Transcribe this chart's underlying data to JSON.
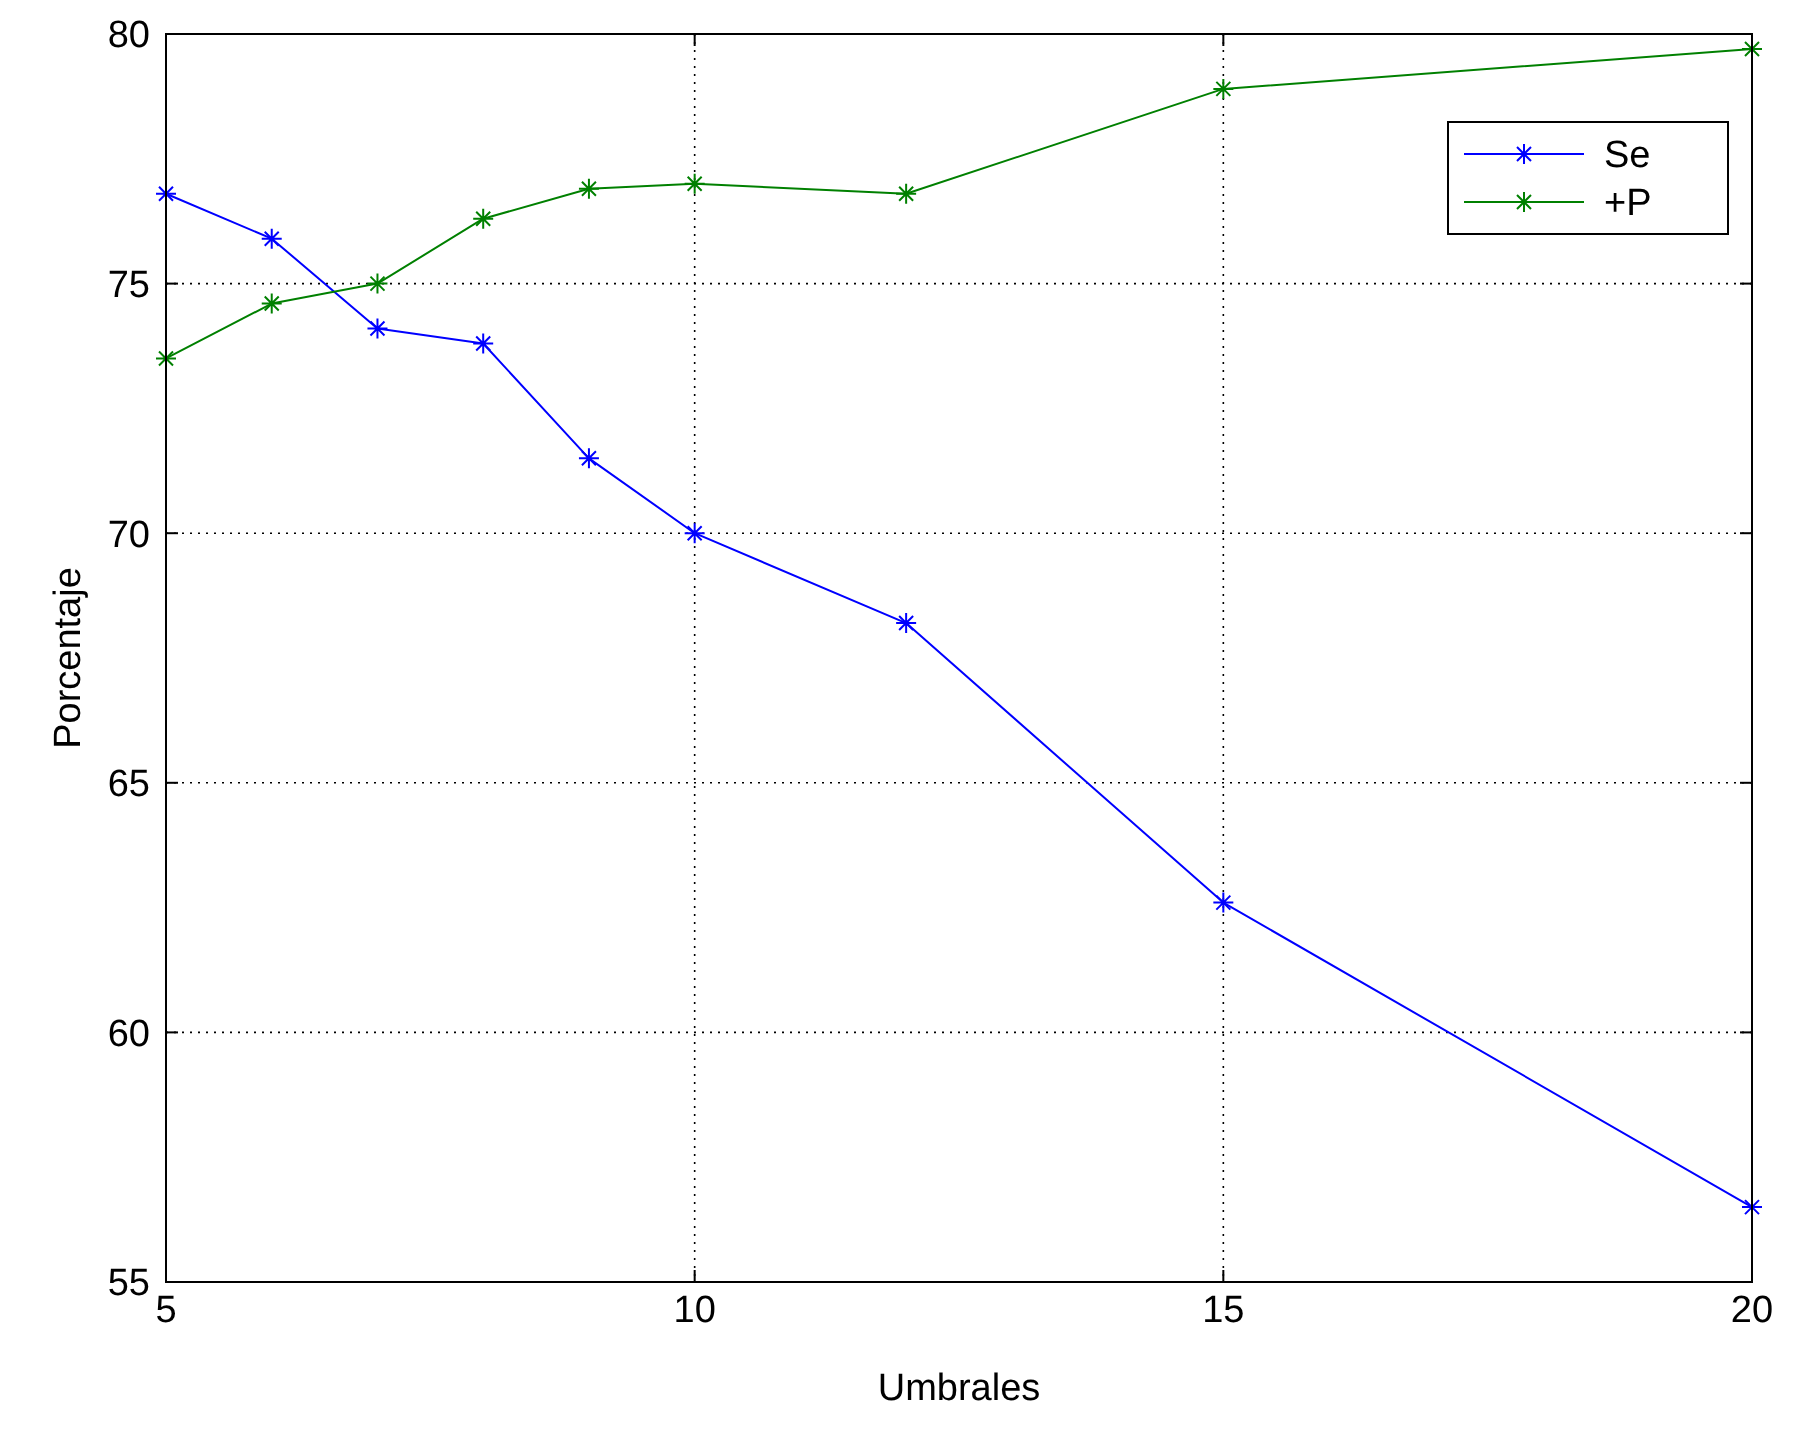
{
  "chart_data": {
    "type": "line",
    "xlabel": "Umbrales",
    "ylabel": "Porcentaje",
    "x": [
      5,
      6,
      7,
      8,
      9,
      10,
      12,
      15,
      20
    ],
    "series": [
      {
        "name": "Se",
        "color": "#0000ff",
        "values": [
          76.8,
          75.9,
          74.1,
          73.8,
          71.5,
          70.0,
          68.2,
          62.6,
          56.5
        ]
      },
      {
        "name": "+P",
        "color": "#008000",
        "values": [
          73.5,
          74.6,
          75.0,
          76.3,
          76.9,
          77.0,
          76.8,
          78.9,
          79.7
        ]
      }
    ],
    "xlim": [
      5,
      20
    ],
    "xticks": [
      5,
      10,
      15,
      20
    ],
    "ylim": [
      55,
      80
    ],
    "yticks": [
      55,
      60,
      65,
      70,
      75,
      80
    ],
    "grid": true,
    "legend": "top right",
    "marker": "cross",
    "line_style": "solid"
  }
}
